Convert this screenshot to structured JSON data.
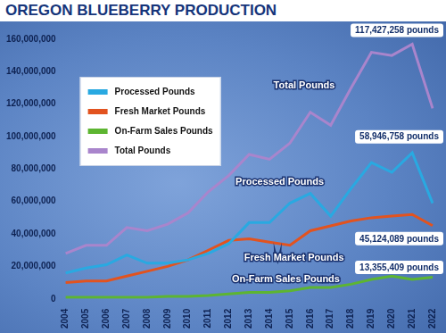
{
  "chart_data": {
    "type": "line",
    "title": "OREGON BLUEBERRY PRODUCTION",
    "categories": [
      "2004",
      "2005",
      "2006",
      "2007",
      "2008",
      "2009",
      "2010",
      "2011",
      "2012",
      "2013",
      "2014",
      "2015",
      "2016",
      "2017",
      "2018",
      "2019",
      "2020",
      "2021",
      "2022"
    ],
    "series": [
      {
        "name": "Processed Pounds",
        "color": "#29a9e1",
        "values": [
          16000000,
          19000000,
          21000000,
          27000000,
          22000000,
          22000000,
          24000000,
          28000000,
          34000000,
          47000000,
          47000000,
          59000000,
          65000000,
          51000000,
          68000000,
          84000000,
          78000000,
          90000000,
          58946758
        ],
        "value_labels": [
          null,
          null,
          null,
          null,
          null,
          null,
          null,
          null,
          null,
          null,
          null,
          null,
          null,
          null,
          null,
          null,
          null,
          null,
          "58,946,758 pounds"
        ]
      },
      {
        "name": "Fresh Market Pounds",
        "color": "#e2531f",
        "values": [
          10000000,
          11000000,
          11000000,
          14000000,
          17000000,
          20000000,
          24000000,
          30000000,
          36000000,
          37000000,
          35000000,
          33000000,
          42000000,
          45000000,
          48000000,
          50000000,
          51000000,
          52000000,
          45124089
        ],
        "value_labels": [
          null,
          null,
          null,
          null,
          null,
          null,
          null,
          null,
          null,
          null,
          null,
          null,
          null,
          null,
          null,
          null,
          null,
          null,
          "45,124,089 pounds"
        ]
      },
      {
        "name": "On-Farm Sales Pounds",
        "color": "#5db531",
        "values": [
          1000000,
          1000000,
          1000000,
          1000000,
          1000000,
          1500000,
          1500000,
          2000000,
          3000000,
          4000000,
          4000000,
          5000000,
          7000000,
          7000000,
          9000000,
          12000000,
          14000000,
          12000000,
          13355409
        ],
        "value_labels": [
          null,
          null,
          null,
          null,
          null,
          null,
          null,
          null,
          null,
          null,
          null,
          null,
          null,
          null,
          null,
          null,
          null,
          null,
          "13,355,409 pounds"
        ]
      },
      {
        "name": "Total Pounds",
        "color": "#a985cc",
        "values": [
          28000000,
          33000000,
          33000000,
          44000000,
          42000000,
          46000000,
          53000000,
          66000000,
          76000000,
          89000000,
          86000000,
          96000000,
          115000000,
          107000000,
          130000000,
          152000000,
          150000000,
          157000000,
          117427258
        ],
        "value_labels": [
          null,
          null,
          null,
          null,
          null,
          null,
          null,
          null,
          null,
          null,
          null,
          null,
          null,
          null,
          null,
          null,
          null,
          null,
          "117,427,258 pounds"
        ]
      }
    ],
    "ylim": [
      0,
      160000000
    ],
    "yticks": [
      0,
      {
        "value": 20000000,
        "label": "20,000,000"
      },
      {
        "value": 40000000,
        "label": "40,000,000"
      },
      {
        "value": 60000000,
        "label": "60,000,000"
      },
      {
        "value": 80000000,
        "label": "80,000,000"
      },
      {
        "value": 100000000,
        "label": "100,000,000"
      },
      {
        "value": 120000000,
        "label": "120,000,000"
      },
      {
        "value": 140000000,
        "label": "140,000,000"
      },
      {
        "value": 160000000,
        "label": "160,000,000"
      }
    ],
    "grid": false,
    "legend": "upper left",
    "data_labels": true
  }
}
